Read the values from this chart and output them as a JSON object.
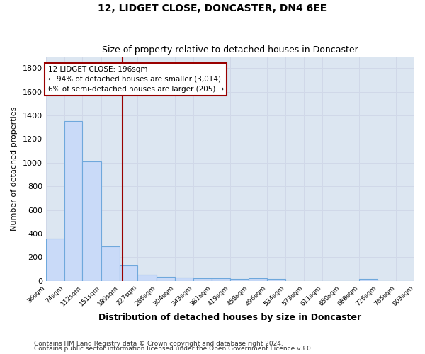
{
  "title": "12, LIDGET CLOSE, DONCASTER, DN4 6EE",
  "subtitle": "Size of property relative to detached houses in Doncaster",
  "xlabel": "Distribution of detached houses by size in Doncaster",
  "ylabel": "Number of detached properties",
  "footnote1": "Contains HM Land Registry data © Crown copyright and database right 2024.",
  "footnote2": "Contains public sector information licensed under the Open Government Licence v3.0.",
  "bin_edges": [
    36,
    74,
    112,
    151,
    189,
    227,
    266,
    304,
    343,
    381,
    419,
    458,
    496,
    534,
    573,
    611,
    650,
    688,
    726,
    765,
    803
  ],
  "bar_heights": [
    355,
    1350,
    1010,
    290,
    130,
    50,
    35,
    30,
    20,
    20,
    15,
    20,
    15,
    0,
    0,
    0,
    0,
    15,
    0,
    0
  ],
  "bar_color": "#c9daf8",
  "bar_edge_color": "#6fa8dc",
  "property_line_x": 196,
  "property_line_color": "#990000",
  "annotation_text_line1": "12 LIDGET CLOSE: 196sqm",
  "annotation_text_line2": "← 94% of detached houses are smaller (3,014)",
  "annotation_text_line3": "6% of semi-detached houses are larger (205) →",
  "annotation_box_facecolor": "#ffffff",
  "annotation_box_edgecolor": "#990000",
  "ylim": [
    0,
    1900
  ],
  "yticks": [
    0,
    200,
    400,
    600,
    800,
    1000,
    1200,
    1400,
    1600,
    1800
  ],
  "grid_color": "#d0d8e8",
  "fig_bg_color": "#ffffff",
  "plot_bg_color": "#dce6f1"
}
